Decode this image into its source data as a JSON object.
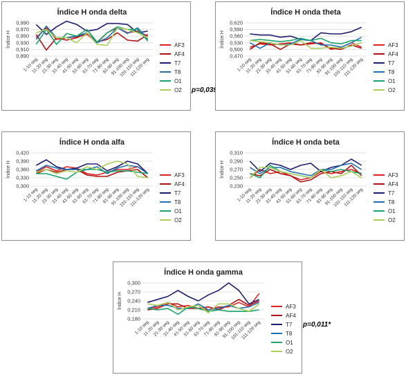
{
  "colors": {
    "AF3": "#e02020",
    "AF4": "#b01010",
    "T7": "#1c1c6e",
    "T8": "#1f6fb2",
    "O1": "#1aa36a",
    "O2": "#a8d05a"
  },
  "chart_data": [
    {
      "id": "delta",
      "type": "line",
      "title": "Índice H onda delta",
      "ylabel": "Índice H",
      "ylim": [
        0.89,
        0.99
      ],
      "yticks": [
        "0,890",
        "0,910",
        "0,930",
        "0,950",
        "0,970",
        "0,990"
      ],
      "categories": [
        "1-10 seg",
        "11-20 seg",
        "21-30 seg",
        "31-40 seg",
        "41-50 seg",
        "51-60 seg",
        "61-70 seg",
        "71-80 seg",
        "81-90 seg",
        "91-100 seg",
        "101-110 seg",
        "111-120 seg"
      ],
      "annotation": "p=0,039*",
      "series": [
        {
          "name": "AF3",
          "values": [
            0.945,
            0.975,
            0.94,
            0.945,
            0.948,
            0.955,
            0.93,
            0.96,
            0.975,
            0.96,
            0.965,
            0.95
          ]
        },
        {
          "name": "AF4",
          "values": [
            0.955,
            0.908,
            0.945,
            0.938,
            0.945,
            0.96,
            0.932,
            0.94,
            0.96,
            0.938,
            0.935,
            0.955
          ]
        },
        {
          "name": "T7",
          "values": [
            0.985,
            0.955,
            0.978,
            0.995,
            0.985,
            0.965,
            0.97,
            0.988,
            0.988,
            0.985,
            0.96,
            0.965
          ]
        },
        {
          "name": "T8",
          "values": [
            0.94,
            0.98,
            0.945,
            0.945,
            0.95,
            0.96,
            0.93,
            0.945,
            0.975,
            0.958,
            0.975,
            0.94
          ]
        },
        {
          "name": "O1",
          "values": [
            0.925,
            0.97,
            0.925,
            0.958,
            0.95,
            0.97,
            0.932,
            0.96,
            0.978,
            0.97,
            0.97,
            0.935
          ]
        },
        {
          "name": "O2",
          "values": [
            0.96,
            0.97,
            0.945,
            0.945,
            0.93,
            0.96,
            0.925,
            0.922,
            0.975,
            0.97,
            0.96,
            0.945
          ]
        }
      ]
    },
    {
      "id": "theta",
      "type": "line",
      "title": "Índice H onda theta",
      "ylabel": "Índice H",
      "ylim": [
        0.47,
        0.62
      ],
      "yticks": [
        "0,470",
        "0,500",
        "0,530",
        "0,560",
        "0,590",
        "0,620"
      ],
      "categories": [
        "1-10 seg",
        "11-20 seg",
        "21-30 seg",
        "31-40 seg",
        "41-50 seg",
        "51-60 seg",
        "61-70 seg",
        "71-80 seg",
        "81-90 seg",
        "91-100 seg",
        "101-110 seg",
        "111-120 seg"
      ],
      "annotation": "",
      "series": [
        {
          "name": "AF3",
          "values": [
            0.51,
            0.525,
            0.52,
            0.525,
            0.53,
            0.52,
            0.525,
            0.53,
            0.5,
            0.51,
            0.53,
            0.51
          ]
        },
        {
          "name": "AF4",
          "values": [
            0.5,
            0.53,
            0.525,
            0.5,
            0.525,
            0.52,
            0.53,
            0.525,
            0.505,
            0.5,
            0.52,
            0.505
          ]
        },
        {
          "name": "T7",
          "values": [
            0.57,
            0.565,
            0.565,
            0.555,
            0.56,
            0.545,
            0.54,
            0.575,
            0.57,
            0.57,
            0.58,
            0.6
          ]
        },
        {
          "name": "T8",
          "values": [
            0.53,
            0.505,
            0.53,
            0.52,
            0.525,
            0.545,
            0.54,
            0.52,
            0.52,
            0.51,
            0.53,
            0.555
          ]
        },
        {
          "name": "O1",
          "values": [
            0.54,
            0.545,
            0.54,
            0.535,
            0.54,
            0.55,
            0.54,
            0.55,
            0.53,
            0.525,
            0.54,
            0.54
          ]
        },
        {
          "name": "O2",
          "values": [
            0.54,
            0.535,
            0.53,
            0.52,
            0.52,
            0.54,
            0.505,
            0.505,
            0.51,
            0.505,
            0.515,
            0.53
          ]
        }
      ]
    },
    {
      "id": "alfa",
      "type": "line",
      "title": "Índice H onda alfa",
      "ylabel": "Índice H",
      "ylim": [
        0.3,
        0.42
      ],
      "yticks": [
        "0,300",
        "0,330",
        "0,360",
        "0,390",
        "0,420"
      ],
      "categories": [
        "1-10 seg",
        "11-20 seg",
        "21-30 seg",
        "31-40 seg",
        "41-50 seg",
        "51-60 seg",
        "61-70 seg",
        "71-80 seg",
        "81-90 seg",
        "91-100 seg",
        "101-110 seg",
        "111-120 seg"
      ],
      "annotation": "",
      "series": [
        {
          "name": "AF3",
          "values": [
            0.35,
            0.37,
            0.355,
            0.37,
            0.365,
            0.345,
            0.34,
            0.35,
            0.36,
            0.36,
            0.37,
            0.345
          ]
        },
        {
          "name": "AF4",
          "values": [
            0.345,
            0.36,
            0.35,
            0.36,
            0.36,
            0.34,
            0.335,
            0.335,
            0.35,
            0.355,
            0.36,
            0.33
          ]
        },
        {
          "name": "T7",
          "values": [
            0.375,
            0.395,
            0.37,
            0.36,
            0.365,
            0.38,
            0.38,
            0.355,
            0.37,
            0.39,
            0.38,
            0.345
          ]
        },
        {
          "name": "T8",
          "values": [
            0.355,
            0.375,
            0.365,
            0.36,
            0.36,
            0.36,
            0.37,
            0.345,
            0.365,
            0.375,
            0.37,
            0.345
          ]
        },
        {
          "name": "O1",
          "values": [
            0.345,
            0.345,
            0.335,
            0.325,
            0.35,
            0.36,
            0.36,
            0.35,
            0.355,
            0.355,
            0.35,
            0.345
          ]
        },
        {
          "name": "O2",
          "values": [
            0.35,
            0.36,
            0.345,
            0.355,
            0.35,
            0.37,
            0.36,
            0.38,
            0.39,
            0.38,
            0.335,
            0.33
          ]
        }
      ]
    },
    {
      "id": "beta",
      "type": "line",
      "title": "Índice H onda beta",
      "ylabel": "Índice H",
      "ylim": [
        0.23,
        0.31
      ],
      "yticks": [
        "0,230",
        "0,250",
        "0,270",
        "0,290",
        "0,310"
      ],
      "categories": [
        "1-10 seg",
        "11-20 seg",
        "21-30 seg",
        "31-40 seg",
        "41-50 seg",
        "51-60 seg",
        "61-70 seg",
        "71-80 seg",
        "81-90 seg",
        "91-100 seg",
        "101-110 seg",
        "111-120 seg"
      ],
      "annotation": "",
      "series": [
        {
          "name": "AF3",
          "values": [
            0.25,
            0.27,
            0.26,
            0.265,
            0.255,
            0.245,
            0.25,
            0.265,
            0.26,
            0.265,
            0.27,
            0.26
          ]
        },
        {
          "name": "AF4",
          "values": [
            0.26,
            0.255,
            0.27,
            0.26,
            0.255,
            0.24,
            0.245,
            0.26,
            0.265,
            0.26,
            0.28,
            0.255
          ]
        },
        {
          "name": "T7",
          "values": [
            0.29,
            0.265,
            0.285,
            0.28,
            0.27,
            0.28,
            0.285,
            0.265,
            0.275,
            0.28,
            0.295,
            0.28
          ]
        },
        {
          "name": "T8",
          "values": [
            0.275,
            0.26,
            0.275,
            0.275,
            0.265,
            0.26,
            0.255,
            0.27,
            0.27,
            0.28,
            0.285,
            0.27
          ]
        },
        {
          "name": "O1",
          "values": [
            0.26,
            0.25,
            0.28,
            0.265,
            0.26,
            0.255,
            0.25,
            0.27,
            0.265,
            0.27,
            0.265,
            0.26
          ]
        },
        {
          "name": "O2",
          "values": [
            0.25,
            0.275,
            0.275,
            0.265,
            0.26,
            0.255,
            0.25,
            0.27,
            0.25,
            0.255,
            0.265,
            0.25
          ]
        }
      ]
    },
    {
      "id": "gamma",
      "type": "line",
      "title": "Índice H onda gamma",
      "ylabel": "Índice H",
      "ylim": [
        0.18,
        0.3
      ],
      "yticks": [
        "0,180",
        "0,210",
        "0,240",
        "0,270",
        "0,300"
      ],
      "categories": [
        "1-10 seg",
        "11-20 seg",
        "21-30 seg",
        "31-40 seg",
        "41-50 seg",
        "51-60 seg",
        "61-70 seg",
        "71-80 seg",
        "81-90 seg",
        "91-100 seg",
        "101-110 seg",
        "111-120 seg"
      ],
      "annotation": "p=0,011*",
      "series": [
        {
          "name": "AF3",
          "values": [
            0.215,
            0.22,
            0.235,
            0.22,
            0.225,
            0.215,
            0.21,
            0.22,
            0.22,
            0.235,
            0.22,
            0.265
          ]
        },
        {
          "name": "AF4",
          "values": [
            0.21,
            0.215,
            0.23,
            0.23,
            0.215,
            0.215,
            0.22,
            0.21,
            0.225,
            0.245,
            0.225,
            0.24
          ]
        },
        {
          "name": "T7",
          "values": [
            0.235,
            0.245,
            0.255,
            0.275,
            0.255,
            0.24,
            0.26,
            0.275,
            0.3,
            0.275,
            0.23,
            0.245
          ]
        },
        {
          "name": "T8",
          "values": [
            0.215,
            0.225,
            0.225,
            0.215,
            0.215,
            0.23,
            0.21,
            0.215,
            0.225,
            0.215,
            0.22,
            0.235
          ]
        },
        {
          "name": "O1",
          "values": [
            0.215,
            0.21,
            0.215,
            0.195,
            0.22,
            0.215,
            0.205,
            0.21,
            0.205,
            0.205,
            0.205,
            0.21
          ]
        },
        {
          "name": "O2",
          "values": [
            0.23,
            0.225,
            0.235,
            0.21,
            0.22,
            0.225,
            0.2,
            0.23,
            0.23,
            0.215,
            0.205,
            0.23
          ]
        }
      ]
    }
  ]
}
